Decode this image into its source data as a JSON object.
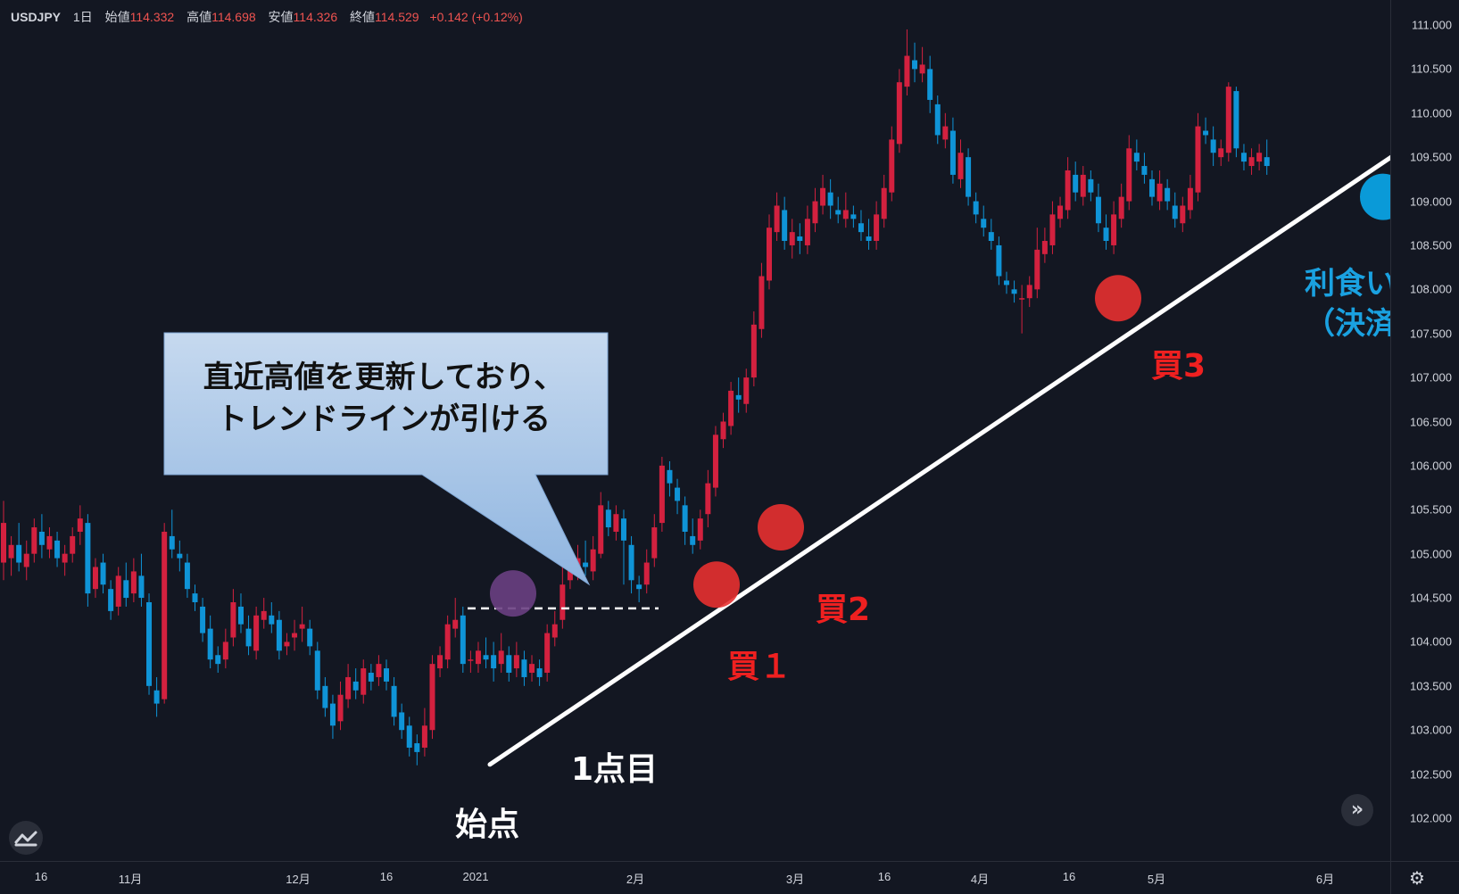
{
  "legend": {
    "symbol": "USDJPY",
    "interval": "1日",
    "open_label": "始値",
    "open": "114.332",
    "high_label": "高値",
    "high": "114.698",
    "low_label": "安値",
    "low": "114.326",
    "close_label": "終値",
    "close": "114.529",
    "change": "+0.142 (+0.12%)"
  },
  "colors": {
    "background": "#131722",
    "up": "#d3213f",
    "down": "#0f94d7",
    "trendline": "#ffffff",
    "buy_marker": "#e83030",
    "take_profit_marker": "#0a9ad8",
    "callout": "#9fc0e3",
    "annotation_red": "#ef2020",
    "annotation_blue": "#1aa1e0"
  },
  "price_axis": [
    "111.000",
    "110.500",
    "110.000",
    "109.500",
    "109.000",
    "108.500",
    "108.000",
    "107.500",
    "107.000",
    "106.500",
    "106.000",
    "105.500",
    "105.000",
    "104.500",
    "104.000",
    "103.500",
    "103.000",
    "102.500",
    "102.000"
  ],
  "time_axis": [
    "16",
    "11月",
    "12月",
    "16",
    "2021",
    "2月",
    "3月",
    "16",
    "4月",
    "16",
    "5月",
    "6月"
  ],
  "callout": {
    "line1": "直近高値を更新しており、",
    "line2": "トレンドラインが引ける"
  },
  "annotations": {
    "start": "始点",
    "point1": "1点目",
    "buy1": "買１",
    "buy2": "買2",
    "buy3": "買3",
    "take_profit_1": "利食い",
    "take_profit_2": "（決済）"
  },
  "icons": {
    "logo": "tradingview-logo-icon",
    "scroll": "double-chevron-right-icon",
    "settings": "gear-icon"
  },
  "chart_data": {
    "type": "candlestick",
    "title": "USDJPY 1日",
    "ylim": [
      102.0,
      111.0
    ],
    "candles": [
      [
        104.9,
        105.35,
        104.7,
        105.6
      ],
      [
        104.95,
        105.1,
        104.75,
        105.2
      ],
      [
        105.1,
        104.9,
        104.8,
        105.35
      ],
      [
        104.85,
        105.0,
        104.7,
        105.15
      ],
      [
        105.0,
        105.3,
        104.9,
        105.4
      ],
      [
        105.25,
        105.1,
        104.95,
        105.45
      ],
      [
        105.05,
        105.2,
        104.95,
        105.3
      ],
      [
        105.15,
        104.95,
        104.85,
        105.25
      ],
      [
        104.9,
        105.0,
        104.75,
        105.1
      ],
      [
        105.0,
        105.2,
        104.9,
        105.3
      ],
      [
        105.25,
        105.4,
        105.1,
        105.55
      ],
      [
        105.35,
        104.55,
        104.4,
        105.45
      ],
      [
        104.6,
        104.85,
        104.5,
        104.95
      ],
      [
        104.9,
        104.65,
        104.55,
        105.0
      ],
      [
        104.6,
        104.35,
        104.25,
        104.7
      ],
      [
        104.4,
        104.75,
        104.3,
        104.85
      ],
      [
        104.7,
        104.5,
        104.4,
        104.9
      ],
      [
        104.55,
        104.8,
        104.45,
        104.95
      ],
      [
        104.75,
        104.5,
        104.4,
        105.0
      ],
      [
        104.45,
        103.5,
        103.4,
        104.55
      ],
      [
        103.45,
        103.3,
        103.15,
        103.6
      ],
      [
        103.35,
        105.25,
        103.3,
        105.35
      ],
      [
        105.2,
        105.05,
        104.95,
        105.5
      ],
      [
        105.0,
        104.95,
        104.8,
        105.15
      ],
      [
        104.9,
        104.6,
        104.5,
        105.0
      ],
      [
        104.55,
        104.45,
        104.35,
        104.65
      ],
      [
        104.4,
        104.1,
        104.0,
        104.5
      ],
      [
        104.15,
        103.8,
        103.7,
        104.3
      ],
      [
        103.85,
        103.75,
        103.65,
        103.95
      ],
      [
        103.8,
        104.0,
        103.7,
        104.15
      ],
      [
        104.05,
        104.45,
        103.95,
        104.6
      ],
      [
        104.4,
        104.2,
        104.1,
        104.55
      ],
      [
        104.15,
        103.95,
        103.85,
        104.3
      ],
      [
        103.9,
        104.3,
        103.8,
        104.4
      ],
      [
        104.25,
        104.35,
        104.15,
        104.5
      ],
      [
        104.3,
        104.2,
        104.1,
        104.45
      ],
      [
        104.25,
        103.9,
        103.8,
        104.35
      ],
      [
        103.95,
        104.0,
        103.85,
        104.1
      ],
      [
        104.05,
        104.1,
        103.9,
        104.25
      ],
      [
        104.15,
        104.2,
        104.0,
        104.4
      ],
      [
        104.15,
        103.95,
        103.85,
        104.25
      ],
      [
        103.9,
        103.45,
        103.35,
        104.0
      ],
      [
        103.5,
        103.25,
        103.15,
        103.6
      ],
      [
        103.3,
        103.05,
        102.9,
        103.4
      ],
      [
        103.1,
        103.4,
        103.0,
        103.55
      ],
      [
        103.35,
        103.6,
        103.25,
        103.75
      ],
      [
        103.55,
        103.45,
        103.35,
        103.7
      ],
      [
        103.4,
        103.7,
        103.3,
        103.8
      ],
      [
        103.65,
        103.55,
        103.45,
        103.75
      ],
      [
        103.6,
        103.75,
        103.5,
        103.85
      ],
      [
        103.7,
        103.55,
        103.45,
        103.8
      ],
      [
        103.5,
        103.15,
        103.05,
        103.6
      ],
      [
        103.2,
        103.0,
        102.9,
        103.3
      ],
      [
        103.05,
        102.8,
        102.7,
        103.15
      ],
      [
        102.85,
        102.75,
        102.6,
        102.95
      ],
      [
        102.8,
        103.05,
        102.7,
        103.25
      ],
      [
        103.0,
        103.75,
        102.9,
        103.85
      ],
      [
        103.7,
        103.85,
        103.6,
        103.95
      ],
      [
        103.8,
        104.2,
        103.7,
        104.3
      ],
      [
        104.15,
        104.25,
        104.05,
        104.5
      ],
      [
        104.3,
        103.75,
        103.65,
        104.4
      ],
      [
        103.8,
        103.8,
        103.65,
        103.9
      ],
      [
        103.75,
        103.9,
        103.65,
        104.0
      ],
      [
        103.85,
        103.8,
        103.7,
        104.05
      ],
      [
        103.85,
        103.7,
        103.55,
        104.0
      ],
      [
        103.75,
        103.9,
        103.65,
        104.1
      ],
      [
        103.85,
        103.65,
        103.55,
        103.95
      ],
      [
        103.7,
        103.85,
        103.6,
        104.0
      ],
      [
        103.8,
        103.6,
        103.5,
        103.9
      ],
      [
        103.65,
        103.75,
        103.55,
        103.85
      ],
      [
        103.7,
        103.6,
        103.5,
        103.8
      ],
      [
        103.65,
        104.1,
        103.55,
        104.2
      ],
      [
        104.05,
        104.2,
        103.95,
        104.35
      ],
      [
        104.25,
        104.65,
        104.15,
        104.9
      ],
      [
        104.7,
        104.85,
        104.6,
        105.0
      ],
      [
        104.8,
        104.95,
        104.7,
        105.1
      ],
      [
        104.9,
        104.85,
        104.75,
        105.15
      ],
      [
        104.8,
        105.05,
        104.7,
        105.2
      ],
      [
        105.0,
        105.55,
        104.95,
        105.7
      ],
      [
        105.5,
        105.3,
        105.2,
        105.6
      ],
      [
        105.25,
        105.45,
        105.15,
        105.55
      ],
      [
        105.4,
        105.15,
        104.65,
        105.5
      ],
      [
        105.1,
        104.7,
        104.55,
        105.2
      ],
      [
        104.65,
        104.6,
        104.45,
        104.75
      ],
      [
        104.65,
        104.9,
        104.55,
        105.05
      ],
      [
        104.95,
        105.3,
        104.85,
        105.45
      ],
      [
        105.35,
        106.0,
        105.25,
        106.1
      ],
      [
        105.95,
        105.8,
        105.65,
        106.05
      ],
      [
        105.75,
        105.6,
        105.45,
        105.85
      ],
      [
        105.55,
        105.25,
        105.1,
        105.65
      ],
      [
        105.2,
        105.1,
        105.0,
        105.4
      ],
      [
        105.15,
        105.4,
        105.05,
        105.5
      ],
      [
        105.45,
        105.8,
        105.3,
        105.95
      ],
      [
        105.75,
        106.35,
        105.65,
        106.45
      ],
      [
        106.3,
        106.5,
        106.2,
        106.6
      ],
      [
        106.45,
        106.85,
        106.35,
        106.95
      ],
      [
        106.8,
        106.75,
        106.6,
        107.0
      ],
      [
        106.7,
        107.0,
        106.6,
        107.1
      ],
      [
        107.0,
        107.6,
        106.9,
        107.75
      ],
      [
        107.55,
        108.15,
        107.45,
        108.3
      ],
      [
        108.1,
        108.7,
        108.0,
        108.85
      ],
      [
        108.65,
        108.95,
        108.55,
        109.1
      ],
      [
        108.9,
        108.55,
        108.45,
        109.05
      ],
      [
        108.5,
        108.65,
        108.35,
        108.8
      ],
      [
        108.6,
        108.55,
        108.4,
        108.75
      ],
      [
        108.5,
        108.8,
        108.4,
        108.95
      ],
      [
        108.75,
        109.0,
        108.65,
        109.15
      ],
      [
        108.95,
        109.15,
        108.85,
        109.3
      ],
      [
        109.1,
        108.95,
        108.8,
        109.25
      ],
      [
        108.9,
        108.85,
        108.75,
        109.05
      ],
      [
        108.8,
        108.9,
        108.7,
        109.1
      ],
      [
        108.85,
        108.8,
        108.7,
        108.95
      ],
      [
        108.75,
        108.65,
        108.55,
        108.9
      ],
      [
        108.6,
        108.55,
        108.45,
        108.8
      ],
      [
        108.55,
        108.85,
        108.45,
        109.0
      ],
      [
        108.8,
        109.15,
        108.7,
        109.3
      ],
      [
        109.1,
        109.7,
        109.0,
        109.85
      ],
      [
        109.65,
        110.35,
        109.55,
        110.5
      ],
      [
        110.3,
        110.65,
        110.2,
        110.95
      ],
      [
        110.6,
        110.5,
        110.35,
        110.8
      ],
      [
        110.45,
        110.55,
        110.35,
        110.75
      ],
      [
        110.5,
        110.15,
        110.0,
        110.65
      ],
      [
        110.1,
        109.75,
        109.65,
        110.2
      ],
      [
        109.7,
        109.85,
        109.6,
        110.0
      ],
      [
        109.8,
        109.3,
        109.2,
        109.95
      ],
      [
        109.25,
        109.55,
        109.15,
        109.7
      ],
      [
        109.5,
        109.05,
        108.95,
        109.6
      ],
      [
        109.0,
        108.85,
        108.75,
        109.1
      ],
      [
        108.8,
        108.7,
        108.6,
        108.95
      ],
      [
        108.65,
        108.55,
        108.45,
        108.8
      ],
      [
        108.5,
        108.15,
        108.05,
        108.6
      ],
      [
        108.1,
        108.05,
        107.95,
        108.2
      ],
      [
        108.0,
        107.95,
        107.85,
        108.1
      ],
      [
        107.9,
        107.9,
        107.5,
        108.05
      ],
      [
        107.9,
        108.05,
        107.8,
        108.15
      ],
      [
        108.0,
        108.45,
        107.9,
        108.7
      ],
      [
        108.4,
        108.55,
        108.3,
        108.7
      ],
      [
        108.5,
        108.85,
        108.4,
        109.0
      ],
      [
        108.8,
        108.95,
        108.7,
        109.05
      ],
      [
        108.9,
        109.35,
        108.8,
        109.5
      ],
      [
        109.3,
        109.1,
        109.0,
        109.45
      ],
      [
        109.05,
        109.3,
        108.95,
        109.4
      ],
      [
        109.25,
        109.1,
        109.0,
        109.35
      ],
      [
        109.05,
        108.75,
        108.65,
        109.2
      ],
      [
        108.7,
        108.55,
        108.45,
        108.85
      ],
      [
        108.5,
        108.85,
        108.4,
        109.0
      ],
      [
        108.8,
        109.05,
        108.7,
        109.2
      ],
      [
        109.0,
        109.6,
        108.9,
        109.75
      ],
      [
        109.55,
        109.45,
        109.35,
        109.7
      ],
      [
        109.4,
        109.3,
        109.2,
        109.55
      ],
      [
        109.25,
        109.05,
        108.95,
        109.35
      ],
      [
        109.0,
        109.2,
        108.9,
        109.35
      ],
      [
        109.15,
        109.0,
        108.9,
        109.25
      ],
      [
        108.95,
        108.8,
        108.7,
        109.1
      ],
      [
        108.75,
        108.95,
        108.65,
        109.05
      ],
      [
        108.9,
        109.15,
        108.8,
        109.3
      ],
      [
        109.1,
        109.85,
        109.0,
        110.0
      ],
      [
        109.8,
        109.75,
        109.65,
        109.95
      ],
      [
        109.7,
        109.55,
        109.4,
        109.85
      ],
      [
        109.5,
        109.6,
        109.4,
        109.7
      ],
      [
        109.55,
        110.3,
        109.45,
        110.35
      ],
      [
        110.25,
        109.6,
        109.5,
        110.3
      ],
      [
        109.55,
        109.45,
        109.35,
        109.65
      ],
      [
        109.4,
        109.5,
        109.3,
        109.6
      ],
      [
        109.45,
        109.55,
        109.35,
        109.65
      ],
      [
        109.5,
        109.4,
        109.3,
        109.7
      ]
    ],
    "trendline": [
      [
        54,
        102.65
      ],
      [
        172,
        109.6
      ]
    ],
    "markers": [
      {
        "label": "始点",
        "index": 54,
        "price": 102.65
      },
      {
        "label": "1点目",
        "index": 56,
        "price": 104.55
      },
      {
        "label": "買１",
        "index": 79,
        "price": 104.65
      },
      {
        "label": "買2",
        "index": 87,
        "price": 105.3
      },
      {
        "label": "買3",
        "index": 124,
        "price": 107.9
      },
      {
        "label": "利食い（決済）",
        "index": 155,
        "price": 109.05
      }
    ],
    "resistance": 104.38
  }
}
